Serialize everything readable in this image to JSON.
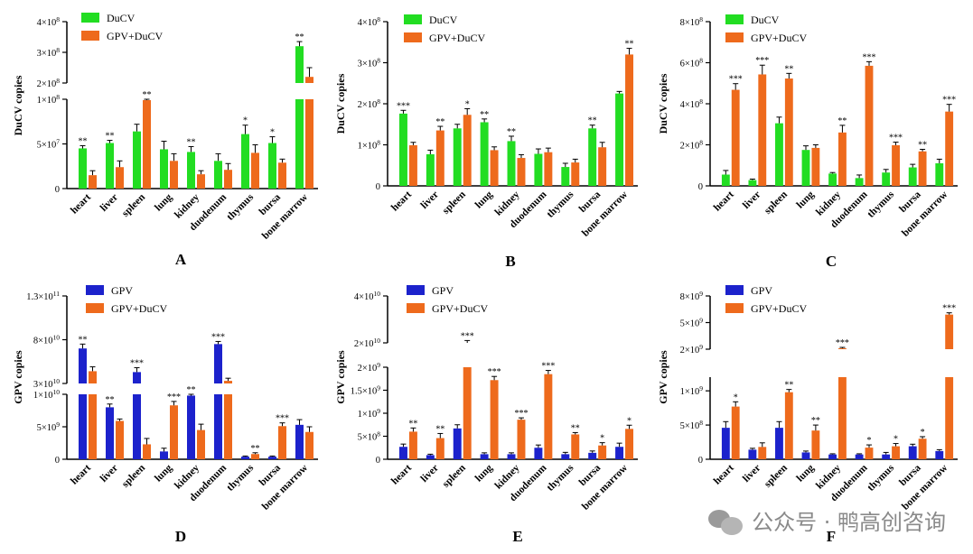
{
  "watermark": {
    "text": "公众号 · 鸭高创咨询"
  },
  "colors": {
    "ducv": "#22dd22",
    "gpv": "#1c22cc",
    "combo": "#ee6a1c",
    "axis": "#000000"
  },
  "chart_data": [
    {
      "type": "bar",
      "panel_label": "A",
      "ylabel": "DuCV copies",
      "categories": [
        "heart",
        "liver",
        "spleen",
        "lung",
        "kidney",
        "duodenum",
        "thymus",
        "bursa",
        "bone marrow"
      ],
      "series": [
        {
          "name": "DuCV",
          "color_key": "ducv",
          "values": [
            45000000,
            51000000,
            64000000,
            44000000,
            41000000,
            31000000,
            61000000,
            51000000,
            320000000
          ],
          "errors": [
            3000000,
            3000000,
            8000000,
            9000000,
            6000000,
            8000000,
            10000000,
            7000000,
            15000000
          ],
          "sig": [
            "**",
            "**",
            "",
            "",
            "**",
            "",
            "*",
            "*",
            "**"
          ]
        },
        {
          "name": "GPV+DuCV",
          "color_key": "combo",
          "values": [
            15000000,
            24000000,
            99000000,
            31000000,
            16000000,
            21000000,
            40000000,
            29000000,
            220000000
          ],
          "errors": [
            5000000,
            7000000,
            7000000,
            8000000,
            4000000,
            7000000,
            9000000,
            4000000,
            30000000
          ],
          "sig": [
            "",
            "",
            "**",
            "",
            "",
            "",
            "",
            "",
            ""
          ]
        }
      ],
      "y_segments": [
        {
          "range": [
            0,
            100000000
          ],
          "ticks": [
            {
              "v": 0,
              "label": "0"
            },
            {
              "v": 50000000,
              "label": "5×10⁷"
            },
            {
              "v": 100000000,
              "label": "1×10⁸"
            }
          ]
        },
        {
          "range": [
            200000000,
            400000000
          ],
          "ticks": [
            {
              "v": 200000000,
              "label": "2×10⁸"
            },
            {
              "v": 300000000,
              "label": "3×10⁸"
            },
            {
              "v": 400000000,
              "label": "4×10⁸"
            }
          ]
        }
      ]
    },
    {
      "type": "bar",
      "panel_label": "B",
      "ylabel": "DuCV copies",
      "categories": [
        "heart",
        "liver",
        "spleen",
        "lung",
        "kidney",
        "duodenum",
        "thymus",
        "bursa",
        "bone marrow"
      ],
      "series": [
        {
          "name": "DuCV",
          "color_key": "ducv",
          "values": [
            176000000,
            77000000,
            140000000,
            155000000,
            109000000,
            78000000,
            46000000,
            140000000,
            225000000
          ],
          "errors": [
            8000000,
            10000000,
            10000000,
            8000000,
            12000000,
            12000000,
            9000000,
            8000000,
            5000000
          ],
          "sig": [
            "***",
            "",
            "",
            "**",
            "**",
            "",
            "",
            "**",
            ""
          ]
        },
        {
          "name": "GPV+DuCV",
          "color_key": "combo",
          "values": [
            99000000,
            135000000,
            173000000,
            87000000,
            68000000,
            82000000,
            57000000,
            94000000,
            320000000
          ],
          "errors": [
            7000000,
            10000000,
            15000000,
            8000000,
            8000000,
            10000000,
            8000000,
            12000000,
            15000000
          ],
          "sig": [
            "",
            "**",
            "*",
            "",
            "",
            "",
            "",
            "",
            "**"
          ]
        }
      ],
      "y_segments": [
        {
          "range": [
            0,
            400000000
          ],
          "ticks": [
            {
              "v": 0,
              "label": "0"
            },
            {
              "v": 100000000,
              "label": "1×10⁸"
            },
            {
              "v": 200000000,
              "label": "2×10⁸"
            },
            {
              "v": 300000000,
              "label": "3×10⁸"
            },
            {
              "v": 400000000,
              "label": "4×10⁸"
            }
          ]
        }
      ]
    },
    {
      "type": "bar",
      "panel_label": "C",
      "ylabel": "DuCV copies",
      "categories": [
        "heart",
        "liver",
        "spleen",
        "lung",
        "kidney",
        "duodenum",
        "thymus",
        "bursa",
        "bone marrow"
      ],
      "series": [
        {
          "name": "DuCV",
          "color_key": "ducv",
          "values": [
            55000000,
            28000000,
            305000000,
            175000000,
            60000000,
            38000000,
            65000000,
            90000000,
            110000000
          ],
          "errors": [
            20000000,
            5000000,
            30000000,
            20000000,
            5000000,
            15000000,
            15000000,
            15000000,
            20000000
          ],
          "sig": [
            "",
            "",
            "",
            "",
            "",
            "",
            "",
            "",
            ""
          ]
        },
        {
          "name": "GPV+DuCV",
          "color_key": "combo",
          "values": [
            468000000,
            543000000,
            523000000,
            185000000,
            260000000,
            585000000,
            198000000,
            168000000,
            362000000
          ],
          "errors": [
            30000000,
            45000000,
            25000000,
            15000000,
            35000000,
            20000000,
            15000000,
            10000000,
            35000000
          ],
          "sig": [
            "***",
            "***",
            "**",
            "",
            "**",
            "***",
            "***",
            "**",
            "***"
          ]
        }
      ],
      "y_segments": [
        {
          "range": [
            0,
            800000000
          ],
          "ticks": [
            {
              "v": 0,
              "label": "0"
            },
            {
              "v": 200000000,
              "label": "2×10⁸"
            },
            {
              "v": 400000000,
              "label": "4×10⁸"
            },
            {
              "v": 600000000,
              "label": "6×10⁸"
            },
            {
              "v": 800000000,
              "label": "8×10⁸"
            }
          ]
        }
      ]
    },
    {
      "type": "bar",
      "panel_label": "D",
      "ylabel": "GPV copies",
      "categories": [
        "heart",
        "liver",
        "spleen",
        "lung",
        "kidney",
        "duodenum",
        "thymus",
        "bursa",
        "bone marrow"
      ],
      "series": [
        {
          "name": "GPV",
          "color_key": "gpv",
          "values": [
            70000000000,
            8000000000,
            43000000000,
            1200000000,
            9800000000,
            75000000000,
            400000000,
            400000000,
            5300000000
          ],
          "errors": [
            5000000000,
            500000000,
            5000000000,
            500000000,
            600000000,
            3000000000,
            100000000,
            100000000,
            800000000
          ],
          "sig": [
            "**",
            "**",
            "***",
            "",
            "**",
            "***",
            "",
            "",
            ""
          ]
        },
        {
          "name": "GPV+DuCV",
          "color_key": "combo",
          "values": [
            44000000000,
            5900000000,
            2300000000,
            8300000000,
            4500000000,
            33000000000,
            800000000,
            5100000000,
            4200000000
          ],
          "errors": [
            5000000000,
            300000000,
            900000000,
            600000000,
            900000000,
            3000000000,
            200000000,
            500000000,
            800000000
          ],
          "sig": [
            "",
            "",
            "",
            "***",
            "",
            "",
            "**",
            "***",
            ""
          ]
        }
      ],
      "y_segments": [
        {
          "range": [
            0,
            10000000000
          ],
          "ticks": [
            {
              "v": 0,
              "label": "0"
            },
            {
              "v": 5000000000,
              "label": "5×10⁹"
            },
            {
              "v": 10000000000,
              "label": "1×10¹⁰"
            }
          ]
        },
        {
          "range": [
            30000000000,
            130000000000
          ],
          "ticks": [
            {
              "v": 30000000000,
              "label": "3×10¹⁰"
            },
            {
              "v": 80000000000,
              "label": "8×10¹⁰"
            },
            {
              "v": 130000000000,
              "label": "1.3×10¹¹"
            }
          ]
        }
      ]
    },
    {
      "type": "bar",
      "panel_label": "E",
      "ylabel": "GPV copies",
      "categories": [
        "heart",
        "liver",
        "spleen",
        "lung",
        "kidney",
        "duodenum",
        "thymus",
        "bursa",
        "bone marrow"
      ],
      "series": [
        {
          "name": "GPV",
          "color_key": "gpv",
          "values": [
            270000000,
            90000000,
            670000000,
            110000000,
            110000000,
            250000000,
            110000000,
            140000000,
            270000000
          ],
          "errors": [
            60000000,
            20000000,
            80000000,
            30000000,
            30000000,
            60000000,
            40000000,
            40000000,
            80000000
          ],
          "sig": [
            "",
            "",
            "",
            "",
            "",
            "",
            "",
            "",
            ""
          ]
        },
        {
          "name": "GPV+DuCV",
          "color_key": "combo",
          "values": [
            600000000,
            460000000,
            20000000000,
            1720000000,
            860000000,
            1850000000,
            540000000,
            300000000,
            660000000
          ],
          "errors": [
            80000000,
            100000000,
            1000000000,
            80000000,
            40000000,
            80000000,
            40000000,
            60000000,
            80000000
          ],
          "sig": [
            "**",
            "**",
            "***",
            "***",
            "***",
            "***",
            "**",
            "*",
            "*"
          ]
        }
      ],
      "y_segments": [
        {
          "range": [
            0,
            2000000000
          ],
          "ticks": [
            {
              "v": 0,
              "label": "0"
            },
            {
              "v": 500000000,
              "label": "5×10⁸"
            },
            {
              "v": 1000000000,
              "label": "1×10⁹"
            },
            {
              "v": 1500000000,
              "label": "1.5×10⁹"
            },
            {
              "v": 2000000000,
              "label": "2×10⁹"
            }
          ]
        },
        {
          "range": [
            20000000000,
            40000000000
          ],
          "ticks": [
            {
              "v": 20000000000,
              "label": "2×10¹⁰"
            },
            {
              "v": 40000000000,
              "label": "4×10¹⁰"
            }
          ]
        }
      ]
    },
    {
      "type": "bar",
      "panel_label": "F",
      "ylabel": "GPV copies",
      "categories": [
        "heart",
        "liver",
        "spleen",
        "lung",
        "kidney",
        "duodenum",
        "thymus",
        "bursa",
        "bone marrow"
      ],
      "series": [
        {
          "name": "GPV",
          "color_key": "gpv",
          "values": [
            460000000,
            140000000,
            460000000,
            100000000,
            70000000,
            70000000,
            70000000,
            190000000,
            120000000
          ],
          "errors": [
            90000000,
            20000000,
            90000000,
            20000000,
            10000000,
            10000000,
            30000000,
            30000000,
            20000000
          ],
          "sig": [
            "",
            "",
            "",
            "",
            "",
            "",
            "",
            "",
            ""
          ]
        },
        {
          "name": "GPV+DuCV",
          "color_key": "combo",
          "values": [
            770000000,
            180000000,
            980000000,
            420000000,
            2100000000,
            170000000,
            190000000,
            300000000,
            5900000000
          ],
          "errors": [
            70000000,
            60000000,
            40000000,
            80000000,
            100000000,
            40000000,
            40000000,
            30000000,
            200000000
          ],
          "sig": [
            "*",
            "",
            "**",
            "**",
            "***",
            "*",
            "*",
            "*",
            "***"
          ]
        }
      ],
      "y_segments": [
        {
          "range": [
            0,
            1200000000
          ],
          "ticks": [
            {
              "v": 0,
              "label": "0"
            },
            {
              "v": 500000000,
              "label": "5×10⁸"
            },
            {
              "v": 1000000000,
              "label": "1×10⁹"
            }
          ]
        },
        {
          "range": [
            2000000000,
            8000000000
          ],
          "ticks": [
            {
              "v": 2000000000,
              "label": "2×10⁹"
            },
            {
              "v": 5000000000,
              "label": "5×10⁹"
            },
            {
              "v": 8000000000,
              "label": "8×10⁹"
            }
          ]
        }
      ]
    }
  ]
}
